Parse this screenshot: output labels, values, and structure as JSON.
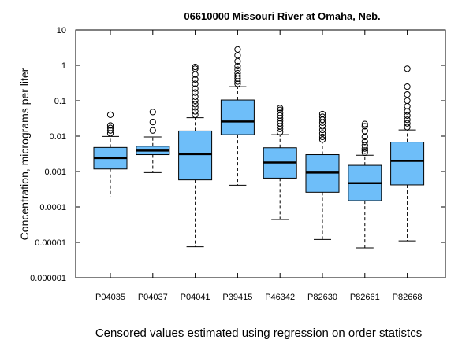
{
  "chart_data": {
    "type": "boxplot",
    "title": "06610000 Missouri River at Omaha, Neb.",
    "ylabel": "Concentration, micrograms per liter",
    "xlabel": "",
    "caption": "Censored values estimated using regression on order statistcs",
    "y_scale": "log",
    "ylim": [
      1e-06,
      10
    ],
    "y_ticks": [
      {
        "value": 10,
        "label": "10"
      },
      {
        "value": 1,
        "label": "1"
      },
      {
        "value": 0.1,
        "label": "0.1"
      },
      {
        "value": 0.01,
        "label": "0.01"
      },
      {
        "value": 0.001,
        "label": "0.001"
      },
      {
        "value": 0.0001,
        "label": "0.0001"
      },
      {
        "value": 1e-05,
        "label": "0.00001"
      },
      {
        "value": 1e-06,
        "label": "0.000001"
      }
    ],
    "categories": [
      "P04035",
      "P04037",
      "P04041",
      "P39415",
      "P46342",
      "P82630",
      "P82661",
      "P82668"
    ],
    "box_color": "#6ebef9",
    "boxes": [
      {
        "whisker_low": 0.00019,
        "q1": 0.00118,
        "median": 0.0024,
        "q3": 0.0048,
        "whisker_high": 0.0098,
        "outliers": [
          0.012,
          0.0145,
          0.017,
          0.02,
          0.04
        ]
      },
      {
        "whisker_low": 0.00093,
        "q1": 0.003,
        "median": 0.0039,
        "q3": 0.0052,
        "whisker_high": 0.0095,
        "outliers": [
          0.0145,
          0.025,
          0.048
        ]
      },
      {
        "whisker_low": 7.5e-06,
        "q1": 0.00058,
        "median": 0.0031,
        "q3": 0.014,
        "whisker_high": 0.033,
        "outliers": [
          0.04,
          0.05,
          0.065,
          0.08,
          0.1,
          0.13,
          0.17,
          0.22,
          0.3,
          0.4,
          0.55,
          0.8,
          0.9
        ]
      },
      {
        "whisker_low": 0.00041,
        "q1": 0.011,
        "median": 0.026,
        "q3": 0.105,
        "whisker_high": 0.25,
        "outliers": [
          0.3,
          0.35,
          0.42,
          0.5,
          0.6,
          0.75,
          0.95,
          1.3,
          1.9,
          2.8
        ]
      },
      {
        "whisker_low": 4.4e-05,
        "q1": 0.00065,
        "median": 0.0018,
        "q3": 0.0047,
        "whisker_high": 0.011,
        "outliers": [
          0.013,
          0.016,
          0.019,
          0.023,
          0.027,
          0.032,
          0.038,
          0.045,
          0.055,
          0.062
        ]
      },
      {
        "whisker_low": 1.2e-05,
        "q1": 0.00026,
        "median": 0.00093,
        "q3": 0.003,
        "whisker_high": 0.0068,
        "outliers": [
          0.008,
          0.0095,
          0.012,
          0.015,
          0.019,
          0.024,
          0.029,
          0.035,
          0.042
        ]
      },
      {
        "whisker_low": 7e-06,
        "q1": 0.00015,
        "median": 0.00047,
        "q3": 0.0015,
        "whisker_high": 0.0029,
        "outliers": [
          0.0034,
          0.0039,
          0.0045,
          0.0055,
          0.007,
          0.0095,
          0.014,
          0.019,
          0.022
        ]
      },
      {
        "whisker_low": 1.1e-05,
        "q1": 0.00042,
        "median": 0.002,
        "q3": 0.0068,
        "whisker_high": 0.015,
        "outliers": [
          0.018,
          0.023,
          0.029,
          0.038,
          0.05,
          0.07,
          0.1,
          0.15,
          0.25,
          0.8
        ]
      }
    ]
  }
}
